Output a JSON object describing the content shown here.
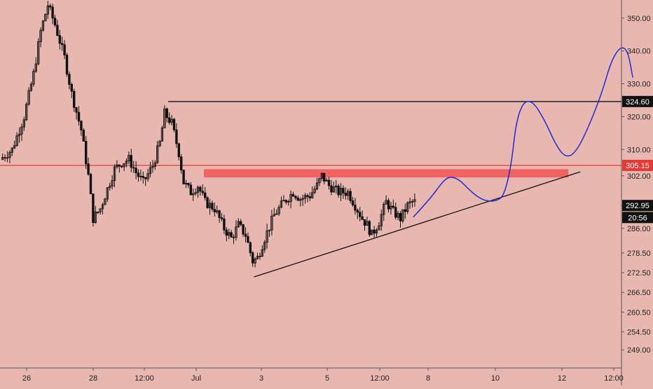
{
  "colors": {
    "background": "#e8b8b0",
    "axis_line": "#555555",
    "candle_up": "#111111",
    "candle_down": "#111111",
    "resistance_line": "#e53935",
    "resistance_zone": "#f25a5a",
    "high_line": "#000000",
    "projection": "#1e2bd6",
    "trendline": "#111111",
    "tag_black": "#111111",
    "tag_red": "#e53935"
  },
  "chart_data": {
    "type": "candlestick",
    "title": "",
    "xlabel": "",
    "ylabel": "",
    "y_range": [
      243.5,
      355.5
    ],
    "grid": false,
    "x_ticks": [
      "26",
      "28",
      "12:00",
      "Jul",
      "3",
      "5",
      "12:00",
      "8",
      "10",
      "12",
      "12:00"
    ],
    "y_ticks": [
      "350.00",
      "340.00",
      "330.00",
      "320.00",
      "310.00",
      "302.00",
      "292.95",
      "286.00",
      "278.50",
      "272.50",
      "266.50",
      "260.50",
      "254.50",
      "249.00"
    ],
    "price_tags": [
      {
        "label": "324.60",
        "value": 324.6,
        "style": "black"
      },
      {
        "label": "305.15",
        "value": 305.15,
        "style": "red"
      },
      {
        "label": "292.95",
        "value": 292.95,
        "style": "black"
      },
      {
        "label": "20:56",
        "value": 289.3,
        "style": "black"
      }
    ],
    "price_path": [
      {
        "x": 0,
        "y": 307
      },
      {
        "x": 0.5,
        "y": 310
      },
      {
        "x": 1,
        "y": 320
      },
      {
        "x": 1.4,
        "y": 333
      },
      {
        "x": 1.7,
        "y": 346
      },
      {
        "x": 2.0,
        "y": 354
      },
      {
        "x": 2.3,
        "y": 348
      },
      {
        "x": 2.7,
        "y": 338
      },
      {
        "x": 3.0,
        "y": 327
      },
      {
        "x": 3.4,
        "y": 316
      },
      {
        "x": 3.7,
        "y": 302
      },
      {
        "x": 3.9,
        "y": 289
      },
      {
        "x": 4.2,
        "y": 292
      },
      {
        "x": 4.5,
        "y": 298
      },
      {
        "x": 4.8,
        "y": 304
      },
      {
        "x": 5.1,
        "y": 306
      },
      {
        "x": 5.4,
        "y": 307
      },
      {
        "x": 5.7,
        "y": 303
      },
      {
        "x": 6.0,
        "y": 300
      },
      {
        "x": 6.4,
        "y": 305
      },
      {
        "x": 6.7,
        "y": 312
      },
      {
        "x": 6.9,
        "y": 321
      },
      {
        "x": 7.2,
        "y": 318
      },
      {
        "x": 7.5,
        "y": 309
      },
      {
        "x": 7.7,
        "y": 300
      },
      {
        "x": 8.0,
        "y": 297
      },
      {
        "x": 8.3,
        "y": 299
      },
      {
        "x": 8.6,
        "y": 294
      },
      {
        "x": 9.0,
        "y": 292
      },
      {
        "x": 9.4,
        "y": 286
      },
      {
        "x": 9.7,
        "y": 283
      },
      {
        "x": 10.0,
        "y": 287
      },
      {
        "x": 10.3,
        "y": 284
      },
      {
        "x": 10.6,
        "y": 276
      },
      {
        "x": 10.8,
        "y": 277
      },
      {
        "x": 11.1,
        "y": 283
      },
      {
        "x": 11.5,
        "y": 290
      },
      {
        "x": 11.9,
        "y": 294
      },
      {
        "x": 12.3,
        "y": 297
      },
      {
        "x": 12.6,
        "y": 295
      },
      {
        "x": 13.0,
        "y": 296
      },
      {
        "x": 13.3,
        "y": 299
      },
      {
        "x": 13.5,
        "y": 302
      },
      {
        "x": 13.8,
        "y": 299
      },
      {
        "x": 14.2,
        "y": 297
      },
      {
        "x": 14.6,
        "y": 297
      },
      {
        "x": 14.9,
        "y": 293
      },
      {
        "x": 15.2,
        "y": 289
      },
      {
        "x": 15.4,
        "y": 287
      },
      {
        "x": 15.6,
        "y": 284
      },
      {
        "x": 15.9,
        "y": 288
      },
      {
        "x": 16.2,
        "y": 294
      },
      {
        "x": 16.5,
        "y": 291
      },
      {
        "x": 16.8,
        "y": 289
      },
      {
        "x": 17.1,
        "y": 293
      },
      {
        "x": 17.3,
        "y": 294
      }
    ],
    "high_level": {
      "value": 324.6,
      "x_start": 7.0,
      "label": "324.60"
    },
    "resistance_level": {
      "value": 305.15,
      "label": "305.15"
    },
    "resistance_zone": {
      "x_start": 8.5,
      "x_end": 23.8,
      "y_low": 301.5,
      "y_high": 304.0
    },
    "trendline": {
      "x1": 10.6,
      "y1": 271.2,
      "x2": 24.3,
      "y2": 303.2
    },
    "projection_path": [
      {
        "x": 17.3,
        "y": 289.5
      },
      {
        "x": 18.0,
        "y": 295
      },
      {
        "x": 18.5,
        "y": 300
      },
      {
        "x": 18.8,
        "y": 301.8
      },
      {
        "x": 19.2,
        "y": 301
      },
      {
        "x": 19.6,
        "y": 298
      },
      {
        "x": 20.0,
        "y": 295.5
      },
      {
        "x": 20.4,
        "y": 294.2
      },
      {
        "x": 20.8,
        "y": 294.4
      },
      {
        "x": 21.1,
        "y": 296
      },
      {
        "x": 21.4,
        "y": 305
      },
      {
        "x": 21.6,
        "y": 318
      },
      {
        "x": 21.9,
        "y": 324.5
      },
      {
        "x": 22.3,
        "y": 324.8
      },
      {
        "x": 22.8,
        "y": 319
      },
      {
        "x": 23.3,
        "y": 311
      },
      {
        "x": 23.7,
        "y": 307.5
      },
      {
        "x": 24.1,
        "y": 309
      },
      {
        "x": 24.6,
        "y": 316
      },
      {
        "x": 25.2,
        "y": 327
      },
      {
        "x": 25.6,
        "y": 337
      },
      {
        "x": 26.0,
        "y": 341.5
      },
      {
        "x": 26.3,
        "y": 340
      },
      {
        "x": 26.5,
        "y": 332
      }
    ]
  }
}
